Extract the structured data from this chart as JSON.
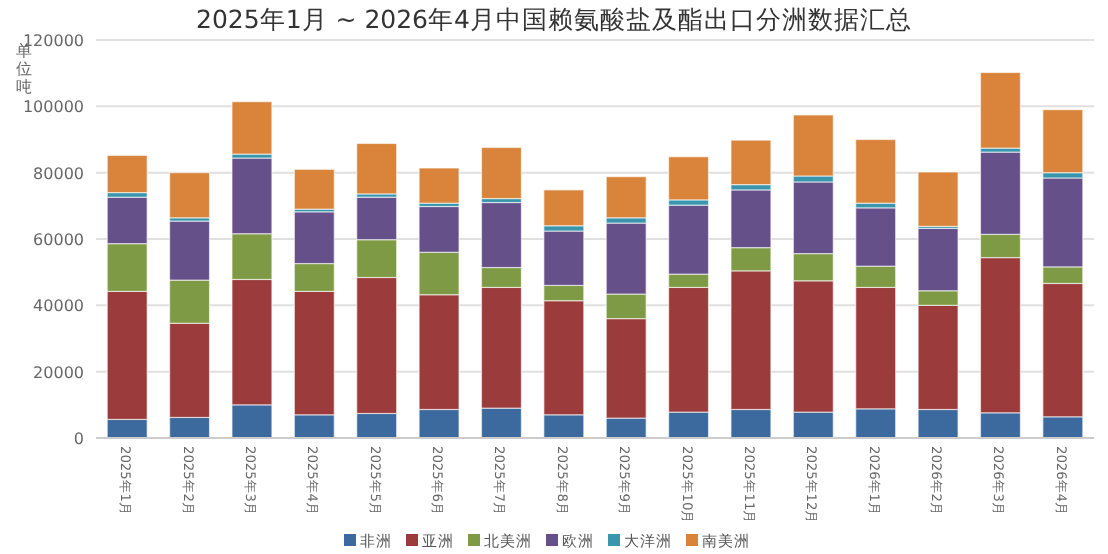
{
  "chart_data": {
    "type": "bar",
    "stacked": true,
    "title": "2025年1月 ~ 2026年4月中国赖氨酸盐及酯出口分洲数据汇总",
    "ylabel": "单位吨",
    "categories": [
      "2025年1月",
      "2025年2月",
      "2025年3月",
      "2025年4月",
      "2025年5月",
      "2025年6月",
      "2025年7月",
      "2025年8月",
      "2025年9月",
      "2025年10月",
      "2025年11月",
      "2025年12月",
      "2026年1月",
      "2026年2月",
      "2026年3月",
      "2026年4月"
    ],
    "series": [
      {
        "name": "非洲",
        "color": "#3d6a9e",
        "values": [
          5600,
          6200,
          10000,
          7000,
          7400,
          8600,
          9000,
          7000,
          6000,
          7800,
          8600,
          7800,
          8800,
          8600,
          7600,
          6400
        ]
      },
      {
        "name": "亚洲",
        "color": "#9c3b3b",
        "values": [
          38600,
          28400,
          37800,
          37200,
          41000,
          34600,
          36400,
          34400,
          30000,
          37600,
          41800,
          39600,
          36600,
          31400,
          46800,
          40200
        ]
      },
      {
        "name": "北美洲",
        "color": "#7f9a44",
        "values": [
          14400,
          13000,
          13800,
          8400,
          11400,
          12800,
          6000,
          4600,
          7400,
          4000,
          7000,
          8200,
          6400,
          4400,
          7000,
          5000
        ]
      },
      {
        "name": "欧洲",
        "color": "#66508a",
        "values": [
          14000,
          17800,
          22800,
          15600,
          12800,
          13800,
          19600,
          16400,
          21400,
          20800,
          17400,
          21600,
          17600,
          18800,
          24800,
          26800
        ]
      },
      {
        "name": "大洋洲",
        "color": "#3a96ad",
        "values": [
          1400,
          1000,
          1200,
          800,
          1000,
          1000,
          1200,
          1600,
          1600,
          1600,
          1600,
          1800,
          1400,
          600,
          1200,
          1600
        ]
      },
      {
        "name": "南美洲",
        "color": "#d9843a",
        "values": [
          11200,
          13600,
          15800,
          12000,
          15200,
          10600,
          15400,
          10800,
          12400,
          13000,
          13400,
          18400,
          19200,
          16400,
          22800,
          19000
        ]
      }
    ],
    "ylim": [
      0,
      120000
    ],
    "yticks": [
      0,
      20000,
      40000,
      60000,
      80000,
      100000,
      120000
    ],
    "grid": "y",
    "legend": "bottom"
  }
}
